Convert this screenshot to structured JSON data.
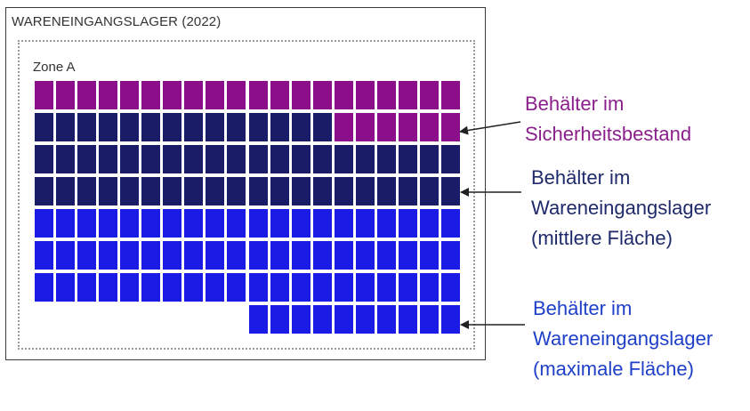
{
  "panel": {
    "title": "WARENEINGANGSLAGER (2022)",
    "zone_label": "Zone A"
  },
  "colors": {
    "safety_stock": "#8b0f8b",
    "medium_area": "#1b1c67",
    "max_area": "#1b1be6"
  },
  "grid": {
    "columns": 20,
    "rows": [
      {
        "segments": [
          {
            "count": 20,
            "type": "safety_stock"
          }
        ]
      },
      {
        "segments": [
          {
            "count": 14,
            "type": "medium_area"
          },
          {
            "count": 6,
            "type": "safety_stock"
          }
        ]
      },
      {
        "segments": [
          {
            "count": 20,
            "type": "medium_area"
          }
        ]
      },
      {
        "segments": [
          {
            "count": 20,
            "type": "medium_area"
          }
        ]
      },
      {
        "segments": [
          {
            "count": 20,
            "type": "max_area"
          }
        ]
      },
      {
        "segments": [
          {
            "count": 20,
            "type": "max_area"
          }
        ]
      },
      {
        "segments": [
          {
            "count": 20,
            "type": "max_area"
          }
        ]
      },
      {
        "segments": [
          {
            "count": 10,
            "type": "empty"
          },
          {
            "count": 10,
            "type": "max_area"
          }
        ]
      }
    ]
  },
  "annotations": {
    "safety_stock": {
      "lines": [
        "Behälter im",
        "Sicherheitsbestand"
      ],
      "color": "#8b1f8b"
    },
    "medium_area": {
      "lines": [
        "Behälter im",
        "Wareneingangslager",
        "(mittlere Fläche)"
      ],
      "color": "#1f2a6b"
    },
    "max_area": {
      "lines": [
        "Behälter im",
        "Wareneingangslager",
        "(maximale Fläche)"
      ],
      "color": "#1f3fc8"
    }
  }
}
